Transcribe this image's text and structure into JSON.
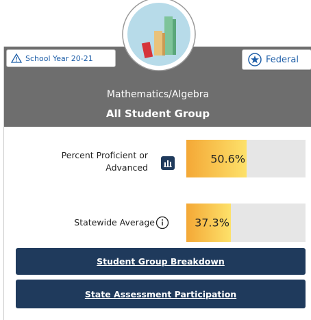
{
  "header": {
    "school_year": "School Year 20-21",
    "federal": "Federal",
    "subject": "Mathematics/Algebra",
    "group": "All Student Group"
  },
  "metrics": [
    {
      "label": "Percent Proficient or Advanced",
      "value": 50.6,
      "value_label": "50.6%"
    },
    {
      "label": "Statewide Average",
      "value": 37.3,
      "value_label": "37.3%"
    }
  ],
  "buttons": [
    "Student Group Breakdown",
    "State Assessment Participation"
  ]
}
